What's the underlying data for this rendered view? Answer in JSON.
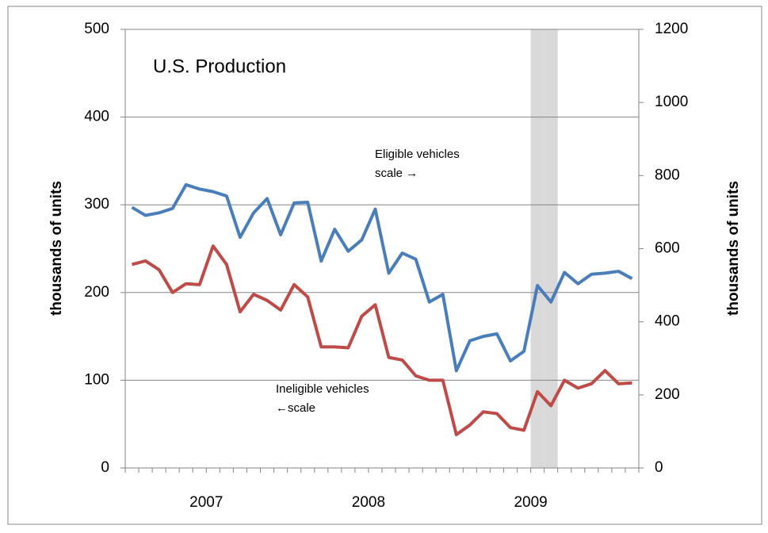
{
  "chart_data": {
    "type": "line",
    "title": "U.S. Production",
    "y_label": "thousands of units",
    "y2_label": "thousands of units",
    "categories": [
      null,
      null,
      null,
      null,
      null,
      "2007",
      null,
      null,
      null,
      null,
      null,
      null,
      null,
      null,
      null,
      null,
      null,
      "2008",
      null,
      null,
      null,
      null,
      null,
      null,
      null,
      null,
      null,
      null,
      null,
      "2009",
      null,
      null,
      null,
      null,
      null,
      null,
      null,
      null
    ],
    "shaded_bands": [
      30,
      31
    ],
    "shade_color": "#d9d9d9",
    "annotations": [
      {
        "lines": [
          "Eligible vehicles",
          "scale →"
        ]
      },
      {
        "lines": [
          "Ineligible vehicles",
          "←scale"
        ]
      }
    ],
    "series": [
      {
        "name": "Eligible vehicles",
        "color": "#4a7ebb",
        "axis": "y2",
        "values": [
          713,
          691,
          698,
          710,
          775,
          763,
          756,
          744,
          631,
          698,
          737,
          638,
          725,
          727,
          566,
          653,
          593,
          624,
          708,
          533,
          588,
          571,
          454,
          475,
          266,
          348,
          360,
          367,
          293,
          319,
          499,
          454,
          535,
          504,
          530,
          533,
          538,
          518
        ]
      },
      {
        "name": "Ineligible vehicles",
        "color": "#be4b48",
        "values": [
          232,
          236,
          226,
          200,
          210,
          209,
          253,
          232,
          178,
          198,
          191,
          180,
          209,
          195,
          138,
          138,
          137,
          173,
          186,
          126,
          123,
          105,
          100,
          100,
          38,
          49,
          64,
          62,
          46,
          43,
          87,
          71,
          100,
          91,
          96,
          111,
          96,
          97
        ]
      }
    ],
    "ylim": [
      0,
      500
    ],
    "yticks": [
      0,
      100,
      200,
      300,
      400,
      500
    ],
    "y2lim": [
      0,
      1200
    ],
    "y2ticks": [
      0,
      200,
      400,
      600,
      800,
      1000,
      1200
    ],
    "grid": true
  }
}
